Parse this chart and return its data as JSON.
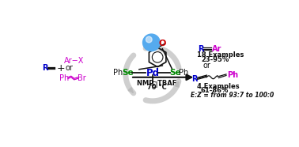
{
  "bg_color": "#ffffff",
  "blue": "#0000cc",
  "purple": "#cc00cc",
  "green": "#008800",
  "black": "#111111",
  "red": "#cc0000",
  "cyan_blue": "#55aaee",
  "gray_recycle": "#bbbbbb",
  "fig_w": 3.78,
  "fig_h": 1.86,
  "dpi": 100,
  "conditions1": "NMP, TBAF",
  "conditions2": "70 °C",
  "product1_examples": "18 Examples",
  "product1_yield": "23-95%",
  "product2_or": "or",
  "product2_examples": "4 Examples",
  "product2_yield": "61-86%",
  "product2_ez": "E:Z = from 93:7 to 100:0"
}
